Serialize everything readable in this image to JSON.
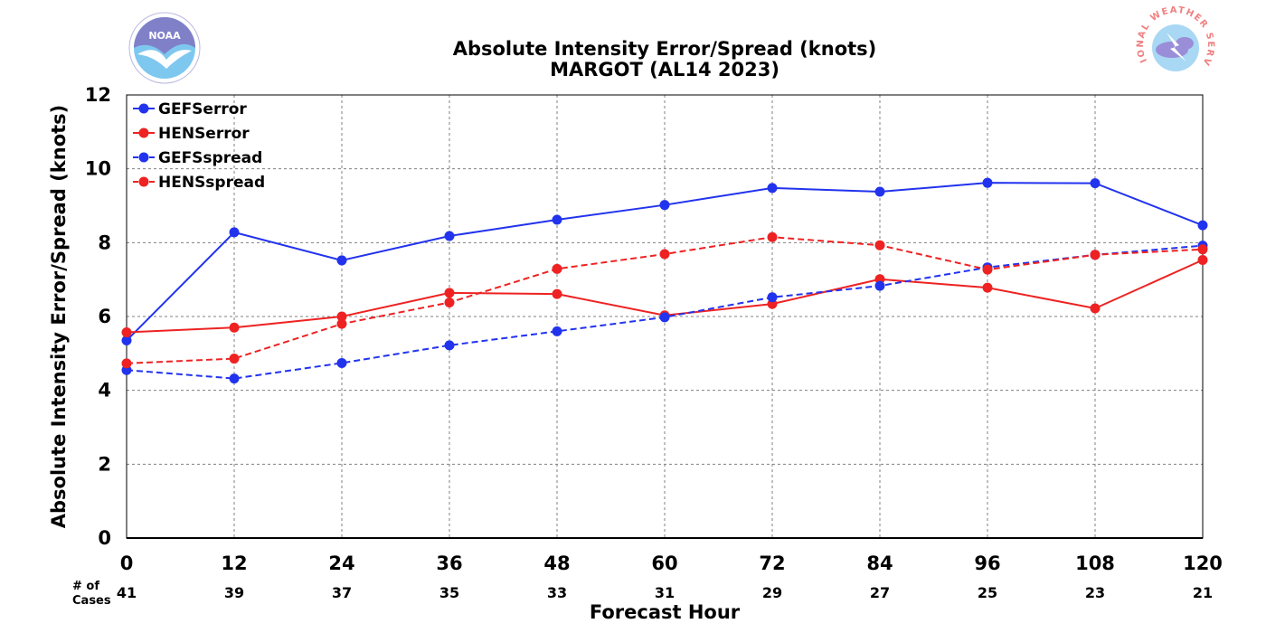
{
  "header": {
    "title_line1": "Absolute Intensity Error/Spread (knots)",
    "title_line2": "MARGOT (AL14 2023)",
    "left_logo_text": "NOAA",
    "right_logo_text": "NATIONAL WEATHER SERVICE"
  },
  "cases": {
    "label_line1": "# of",
    "label_line2": "Cases",
    "values": [
      41,
      39,
      37,
      35,
      33,
      31,
      29,
      27,
      25,
      23,
      21
    ]
  },
  "chart_data": {
    "type": "line",
    "title": "Absolute Intensity Error/Spread (knots)\nMARGOT (AL14 2023)",
    "xlabel": "Forecast Hour",
    "ylabel": "Absolute Intensity Error/Spread (knots)",
    "x": [
      0,
      12,
      24,
      36,
      48,
      60,
      72,
      84,
      96,
      108,
      120
    ],
    "xlim": [
      0,
      120
    ],
    "ylim": [
      0,
      12
    ],
    "yticks": [
      0,
      2,
      4,
      6,
      8,
      10,
      12
    ],
    "grid": true,
    "legend_position": "top-left",
    "series": [
      {
        "name": "GEFSerror",
        "color": "#2233ee",
        "style": "solid",
        "values": [
          5.35,
          8.28,
          7.52,
          8.18,
          8.62,
          9.02,
          9.48,
          9.38,
          9.62,
          9.61,
          8.47
        ]
      },
      {
        "name": "HENSerror",
        "color": "#ee2222",
        "style": "solid",
        "values": [
          5.57,
          5.7,
          6.0,
          6.64,
          6.61,
          6.03,
          6.34,
          7.01,
          6.78,
          6.22,
          7.53
        ]
      },
      {
        "name": "GEFSspread",
        "color": "#2233ee",
        "style": "dashed",
        "values": [
          4.55,
          4.32,
          4.74,
          5.22,
          5.6,
          5.98,
          6.52,
          6.83,
          7.33,
          7.67,
          7.92
        ]
      },
      {
        "name": "HENSspread",
        "color": "#ee2222",
        "style": "dashed",
        "values": [
          4.73,
          4.86,
          5.8,
          6.38,
          7.29,
          7.69,
          8.15,
          7.93,
          7.27,
          7.67,
          7.82
        ]
      }
    ]
  }
}
